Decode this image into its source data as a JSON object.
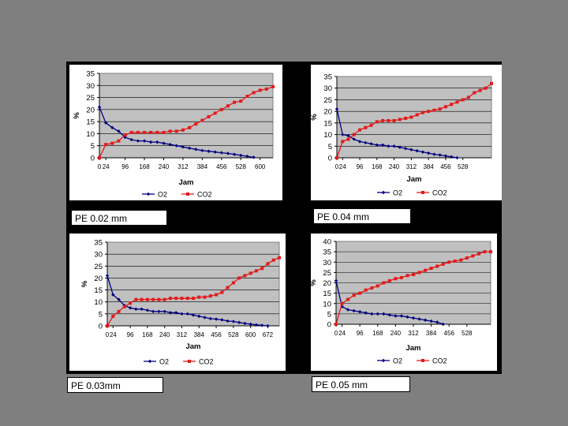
{
  "colors": {
    "background": "#7f7f7f",
    "frame": "#000000",
    "panel": "#ffffff",
    "plot": "#c0c0c0",
    "o2": "#000080",
    "co2": "#e31a1c"
  },
  "labels": [
    "PE 0.02 mm",
    "PE 0.04 mm",
    "PE 0.03mm",
    "PE 0.05 mm"
  ],
  "chart_data": [
    {
      "type": "line",
      "title": "",
      "xlabel": "Jam",
      "ylabel": "%",
      "ylim": [
        0,
        35
      ],
      "yticks": [
        0,
        5,
        10,
        15,
        20,
        25,
        30,
        35
      ],
      "xlim": [
        0,
        648
      ],
      "xticks": [
        0,
        24,
        96,
        168,
        240,
        312,
        384,
        456,
        528,
        600
      ],
      "legend": "bottom",
      "grid": true,
      "series": [
        {
          "name": "O2",
          "color": "#000080",
          "x": [
            0,
            24,
            48,
            72,
            96,
            120,
            144,
            168,
            192,
            216,
            240,
            264,
            288,
            312,
            336,
            360,
            384,
            408,
            432,
            456,
            480,
            504,
            528,
            552,
            576
          ],
          "y": [
            21,
            14.5,
            12.5,
            11,
            8.5,
            7.5,
            7,
            7,
            6.5,
            6.5,
            6,
            5.5,
            5,
            4.5,
            4,
            3.5,
            3,
            2.7,
            2.4,
            2.1,
            1.8,
            1.4,
            1,
            0.6,
            0.2
          ]
        },
        {
          "name": "CO2",
          "color": "#e31a1c",
          "x": [
            0,
            24,
            48,
            72,
            96,
            120,
            144,
            168,
            192,
            216,
            240,
            264,
            288,
            312,
            336,
            360,
            384,
            408,
            432,
            456,
            480,
            504,
            528,
            552,
            576,
            600,
            624,
            648
          ],
          "y": [
            0,
            5.5,
            6,
            7,
            9.5,
            10.5,
            10.5,
            10.5,
            10.5,
            10.5,
            10.5,
            11,
            11,
            11.5,
            12.5,
            14,
            15.5,
            17,
            18.5,
            20,
            21.5,
            23,
            23.5,
            25.5,
            27,
            28,
            28.5,
            29.5
          ]
        }
      ]
    },
    {
      "type": "line",
      "title": "",
      "xlabel": "Jam",
      "ylabel": "%",
      "ylim": [
        0,
        35
      ],
      "yticks": [
        0,
        5,
        10,
        15,
        20,
        25,
        30,
        35
      ],
      "xlim": [
        0,
        648
      ],
      "xticks": [
        0,
        24,
        96,
        168,
        240,
        312,
        384,
        456,
        528
      ],
      "legend": "bottom",
      "grid": true,
      "series": [
        {
          "name": "O2",
          "color": "#000080",
          "x": [
            0,
            24,
            48,
            72,
            96,
            120,
            144,
            168,
            192,
            216,
            240,
            264,
            288,
            312,
            336,
            360,
            384,
            408,
            432,
            456,
            480,
            504
          ],
          "y": [
            21,
            10,
            9.5,
            8,
            7,
            6.5,
            6,
            5.5,
            5.5,
            5,
            5,
            4.5,
            4,
            3.5,
            3,
            2.5,
            2,
            1.5,
            1.2,
            0.8,
            0.4,
            0
          ]
        },
        {
          "name": "CO2",
          "color": "#e31a1c",
          "x": [
            0,
            24,
            48,
            72,
            96,
            120,
            144,
            168,
            192,
            216,
            240,
            264,
            288,
            312,
            336,
            360,
            384,
            408,
            432,
            456,
            480,
            504,
            528,
            552,
            576,
            600,
            624,
            648
          ],
          "y": [
            0,
            7,
            8,
            10,
            12,
            13,
            14,
            15.5,
            16,
            16,
            16,
            16.5,
            17,
            17.5,
            18.5,
            19.5,
            20,
            20.5,
            21,
            22,
            23,
            24,
            25,
            26,
            28,
            29,
            30,
            32
          ]
        }
      ]
    },
    {
      "type": "line",
      "title": "",
      "xlabel": "Jam",
      "ylabel": "%",
      "ylim": [
        0,
        35
      ],
      "yticks": [
        0,
        5,
        10,
        15,
        20,
        25,
        30,
        35
      ],
      "xlim": [
        0,
        720
      ],
      "xticks": [
        0,
        24,
        96,
        168,
        240,
        312,
        384,
        456,
        528,
        600,
        672
      ],
      "legend": "bottom",
      "grid": true,
      "series": [
        {
          "name": "O2",
          "color": "#000080",
          "x": [
            0,
            24,
            48,
            72,
            96,
            120,
            144,
            168,
            192,
            216,
            240,
            264,
            288,
            312,
            336,
            360,
            384,
            408,
            432,
            456,
            480,
            504,
            528,
            552,
            576,
            600,
            624,
            648,
            672
          ],
          "y": [
            21,
            13,
            11,
            8.5,
            7.5,
            7,
            7,
            6.5,
            6,
            6,
            6,
            5.5,
            5.5,
            5,
            5,
            4.5,
            4,
            3.5,
            3,
            2.8,
            2.5,
            2,
            1.8,
            1.4,
            1,
            0.7,
            0.4,
            0.2,
            0
          ]
        },
        {
          "name": "CO2",
          "color": "#e31a1c",
          "x": [
            0,
            24,
            48,
            72,
            96,
            120,
            144,
            168,
            192,
            216,
            240,
            264,
            288,
            312,
            336,
            360,
            384,
            408,
            432,
            456,
            480,
            504,
            528,
            552,
            576,
            600,
            624,
            648,
            672,
            696,
            720
          ],
          "y": [
            0,
            4,
            6,
            8,
            9.5,
            11,
            11,
            11,
            11,
            11,
            11,
            11.5,
            11.5,
            11.5,
            11.5,
            11.5,
            12,
            12,
            12.5,
            13,
            14,
            16,
            18,
            20,
            21,
            22,
            23,
            24,
            26,
            27.5,
            28.5
          ]
        }
      ]
    },
    {
      "type": "line",
      "title": "",
      "xlabel": "Jam",
      "ylabel": "%",
      "ylim": [
        0,
        40
      ],
      "yticks": [
        0,
        5,
        10,
        15,
        20,
        25,
        30,
        35,
        40
      ],
      "xlim": [
        0,
        624
      ],
      "xticks": [
        0,
        24,
        96,
        168,
        240,
        312,
        384,
        456,
        528
      ],
      "legend": "bottom",
      "grid": true,
      "series": [
        {
          "name": "O2",
          "color": "#000080",
          "x": [
            0,
            24,
            48,
            72,
            96,
            120,
            144,
            168,
            192,
            216,
            240,
            264,
            288,
            312,
            336,
            360,
            384,
            408,
            432
          ],
          "y": [
            21,
            8.5,
            7,
            6.5,
            6,
            5.5,
            5,
            5,
            5,
            4.5,
            4,
            4,
            3.5,
            3,
            2.5,
            2,
            1.5,
            1,
            0
          ]
        },
        {
          "name": "CO2",
          "color": "#e31a1c",
          "x": [
            0,
            24,
            48,
            72,
            96,
            120,
            144,
            168,
            192,
            216,
            240,
            264,
            288,
            312,
            336,
            360,
            384,
            408,
            432,
            456,
            480,
            504,
            528,
            552,
            576,
            600,
            624
          ],
          "y": [
            0,
            10,
            12,
            14,
            15,
            16.5,
            17.5,
            18.5,
            20,
            21,
            22,
            22.5,
            23.5,
            24,
            25,
            26,
            27,
            28,
            29,
            30,
            30.5,
            31,
            32,
            33,
            34,
            35,
            35
          ]
        }
      ]
    }
  ]
}
